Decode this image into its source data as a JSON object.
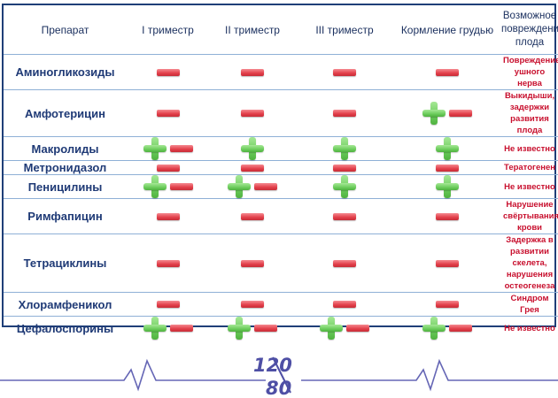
{
  "header": {
    "drug": "Препарат",
    "t1": "I триместр",
    "t2": "II триместр",
    "t3": "III триместр",
    "bf": "Кормление грудью",
    "harm": "Возможное повреждение плода"
  },
  "rows": [
    {
      "drug": "Аминогликозиды",
      "t1": "minus",
      "t2": "minus",
      "t3": "minus",
      "bf": "minus",
      "effect": "Повреждение ушного нерва"
    },
    {
      "drug": "Амфотерицин",
      "t1": "minus",
      "t2": "minus",
      "t3": "minus",
      "bf": "plus-minus",
      "effect": "Выкидыши, задержки развития плода"
    },
    {
      "drug": "Макролиды",
      "t1": "plus-minus",
      "t2": "plus",
      "t3": "plus",
      "bf": "plus",
      "effect": "Не известно"
    },
    {
      "drug": "Метронидазол",
      "t1": "minus",
      "t2": "minus",
      "t3": "minus",
      "bf": "minus",
      "effect": "Тератогенен"
    },
    {
      "drug": "Пеницилины",
      "t1": "plus-minus",
      "t2": "plus-minus",
      "t3": "plus",
      "bf": "plus",
      "effect": "Не известно"
    },
    {
      "drug": "Римфапицин",
      "t1": "minus",
      "t2": "minus",
      "t3": "minus",
      "bf": "minus",
      "effect": "Нарушение свёртывания крови"
    },
    {
      "drug": "Тетрациклины",
      "t1": "minus",
      "t2": "minus",
      "t3": "minus",
      "bf": "minus",
      "effect": "Задержка в развитии скелета, нарушения остеогенеза"
    },
    {
      "drug": "Хлорамфеникол",
      "t1": "minus",
      "t2": "minus",
      "t3": "minus",
      "bf": "minus",
      "effect": "Синдром Грея"
    },
    {
      "drug": "Цефалоспорины",
      "t1": "plus-minus",
      "t2": "plus-minus",
      "t3": "plus-minus",
      "bf": "plus-minus",
      "effect": "Не известно"
    }
  ],
  "logo": {
    "top": "120",
    "bottom": "80"
  },
  "colors": {
    "minus": "#e23e49",
    "plus": "#6ccc5c",
    "header_text": "#1a2f5e",
    "effect_text": "#c8102e",
    "border": "#1f3f78",
    "logo": "#4e4fa5"
  }
}
